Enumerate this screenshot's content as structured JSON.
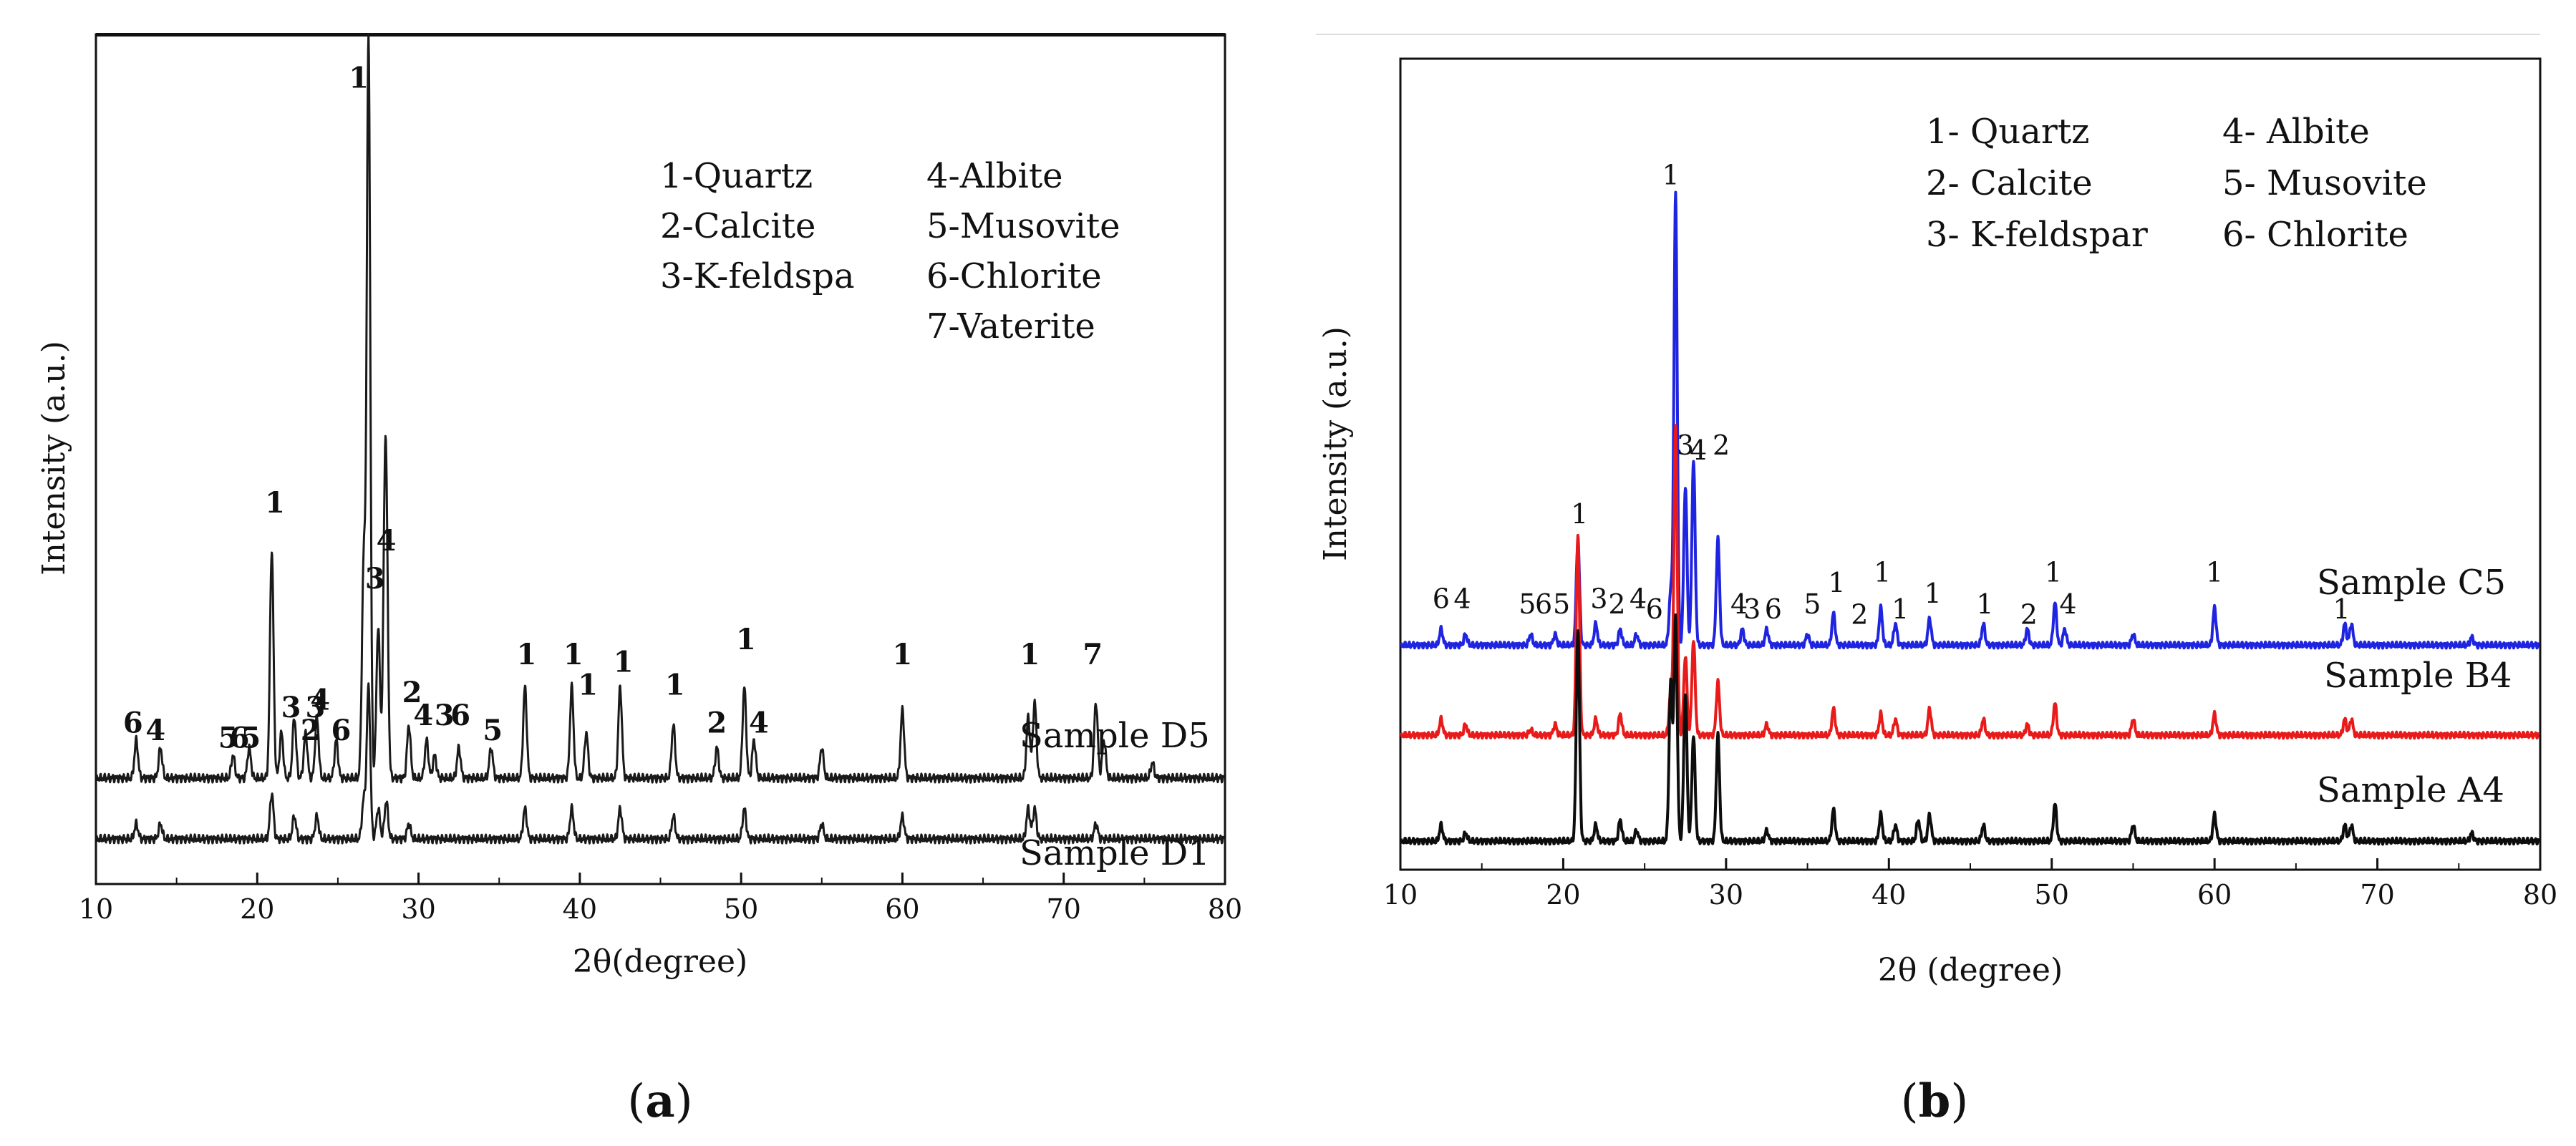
{
  "chart_data": [
    {
      "panel": "a",
      "type": "line",
      "caption": "a",
      "xlabel": "2θ(degree)",
      "ylabel": "Intensity (a.u.)",
      "xlim": [
        10,
        80
      ],
      "xticks": [
        10,
        20,
        30,
        40,
        50,
        60,
        70,
        80
      ],
      "legend": [
        "1-Quartz",
        "2-Calcite",
        "3-K-feldspa",
        "4-Albite",
        "5-Musovite",
        "6-Chlorite",
        "7-Vaterite"
      ],
      "series": [
        {
          "name": "Sample D5",
          "color": "#1a1a1a",
          "baseline": 0.05,
          "peaks": [
            [
              12.5,
              0.05
            ],
            [
              14.0,
              0.04
            ],
            [
              18.5,
              0.03
            ],
            [
              19.5,
              0.04
            ],
            [
              20.9,
              0.3
            ],
            [
              21.5,
              0.06
            ],
            [
              22.3,
              0.08
            ],
            [
              23.0,
              0.06
            ],
            [
              23.7,
              0.08
            ],
            [
              24.9,
              0.05
            ],
            [
              26.6,
              0.28
            ],
            [
              26.9,
              0.97
            ],
            [
              27.5,
              0.2
            ],
            [
              27.9,
              0.22
            ],
            [
              28.0,
              0.28
            ],
            [
              29.4,
              0.07
            ],
            [
              30.5,
              0.05
            ],
            [
              31.0,
              0.03
            ],
            [
              32.5,
              0.04
            ],
            [
              34.5,
              0.04
            ],
            [
              36.6,
              0.12
            ],
            [
              39.5,
              0.12
            ],
            [
              40.4,
              0.06
            ],
            [
              42.5,
              0.12
            ],
            [
              45.8,
              0.07
            ],
            [
              48.5,
              0.04
            ],
            [
              50.2,
              0.12
            ],
            [
              50.8,
              0.05
            ],
            [
              55.0,
              0.04
            ],
            [
              60.0,
              0.09
            ],
            [
              67.8,
              0.08
            ],
            [
              68.2,
              0.1
            ],
            [
              72.0,
              0.1
            ],
            [
              72.5,
              0.05
            ],
            [
              75.5,
              0.02
            ]
          ]
        },
        {
          "name": "Sample D1",
          "color": "#1a1a1a",
          "baseline": 0.0,
          "peaks": [
            [
              12.5,
              0.02
            ],
            [
              14.0,
              0.02
            ],
            [
              20.9,
              0.06
            ],
            [
              22.3,
              0.03
            ],
            [
              23.7,
              0.03
            ],
            [
              26.6,
              0.05
            ],
            [
              26.9,
              0.2
            ],
            [
              27.5,
              0.04
            ],
            [
              28.0,
              0.05
            ],
            [
              29.4,
              0.02
            ],
            [
              36.6,
              0.04
            ],
            [
              39.5,
              0.04
            ],
            [
              42.5,
              0.04
            ],
            [
              45.8,
              0.03
            ],
            [
              50.2,
              0.04
            ],
            [
              55.0,
              0.02
            ],
            [
              60.0,
              0.03
            ],
            [
              67.8,
              0.04
            ],
            [
              68.2,
              0.04
            ],
            [
              72.0,
              0.02
            ]
          ]
        }
      ],
      "series_labels": [
        "Sample D5",
        "Sample D1"
      ],
      "peak_labels": [
        {
          "text": "6",
          "x": 12.3,
          "y": 0.11
        },
        {
          "text": "4",
          "x": 13.7,
          "y": 0.1
        },
        {
          "text": "5",
          "x": 18.2,
          "y": 0.09
        },
        {
          "text": "6",
          "x": 18.9,
          "y": 0.09
        },
        {
          "text": "5",
          "x": 19.6,
          "y": 0.09
        },
        {
          "text": "1",
          "x": 21.1,
          "y": 0.4
        },
        {
          "text": "3",
          "x": 22.1,
          "y": 0.13
        },
        {
          "text": "2",
          "x": 23.3,
          "y": 0.1
        },
        {
          "text": "3",
          "x": 23.6,
          "y": 0.13
        },
        {
          "text": "4",
          "x": 23.9,
          "y": 0.14
        },
        {
          "text": "6",
          "x": 25.2,
          "y": 0.1
        },
        {
          "text": "1",
          "x": 26.3,
          "y": 0.96
        },
        {
          "text": "3",
          "x": 27.3,
          "y": 0.3
        },
        {
          "text": "4",
          "x": 28.0,
          "y": 0.35
        },
        {
          "text": "2",
          "x": 29.6,
          "y": 0.15
        },
        {
          "text": "4",
          "x": 30.3,
          "y": 0.12
        },
        {
          "text": "3",
          "x": 31.6,
          "y": 0.12
        },
        {
          "text": "6",
          "x": 32.6,
          "y": 0.12
        },
        {
          "text": "5",
          "x": 34.6,
          "y": 0.1
        },
        {
          "text": "1",
          "x": 36.7,
          "y": 0.2
        },
        {
          "text": "1",
          "x": 39.6,
          "y": 0.2
        },
        {
          "text": "1",
          "x": 40.5,
          "y": 0.16
        },
        {
          "text": "1",
          "x": 42.7,
          "y": 0.19
        },
        {
          "text": "1",
          "x": 45.9,
          "y": 0.16
        },
        {
          "text": "2",
          "x": 48.5,
          "y": 0.11
        },
        {
          "text": "1",
          "x": 50.3,
          "y": 0.22
        },
        {
          "text": "4",
          "x": 51.1,
          "y": 0.11
        },
        {
          "text": "1",
          "x": 60.0,
          "y": 0.2
        },
        {
          "text": "1",
          "x": 67.9,
          "y": 0.2
        },
        {
          "text": "7",
          "x": 71.8,
          "y": 0.2
        }
      ]
    },
    {
      "panel": "b",
      "type": "line",
      "caption": "b",
      "xlabel": "2θ (degree)",
      "ylabel": "Intensity (a.u.)",
      "xlim": [
        10,
        80
      ],
      "xticks": [
        10,
        20,
        30,
        40,
        50,
        60,
        70,
        80
      ],
      "legend": [
        "1- Quartz",
        "2- Calcite",
        "3- K-feldspar",
        "4- Albite",
        "5- Musovite",
        "6- Chlorite"
      ],
      "series": [
        {
          "name": "Sample C5",
          "color": "#1f24e0",
          "baseline": 0.37,
          "peaks": [
            [
              12.5,
              0.03
            ],
            [
              14.0,
              0.02
            ],
            [
              18.0,
              0.02
            ],
            [
              19.5,
              0.02
            ],
            [
              20.9,
              0.2
            ],
            [
              22.0,
              0.04
            ],
            [
              23.5,
              0.03
            ],
            [
              24.5,
              0.02
            ],
            [
              26.6,
              0.1
            ],
            [
              26.9,
              0.85
            ],
            [
              27.5,
              0.3
            ],
            [
              28.0,
              0.35
            ],
            [
              29.5,
              0.2
            ],
            [
              31.0,
              0.03
            ],
            [
              32.5,
              0.03
            ],
            [
              35.0,
              0.02
            ],
            [
              36.6,
              0.06
            ],
            [
              39.5,
              0.07
            ],
            [
              40.4,
              0.04
            ],
            [
              42.5,
              0.05
            ],
            [
              45.8,
              0.04
            ],
            [
              48.5,
              0.03
            ],
            [
              50.2,
              0.08
            ],
            [
              50.8,
              0.03
            ],
            [
              55.0,
              0.02
            ],
            [
              60.0,
              0.07
            ],
            [
              68.0,
              0.04
            ],
            [
              68.4,
              0.04
            ],
            [
              75.8,
              0.015
            ]
          ]
        },
        {
          "name": "Sample B4",
          "color": "#e81a1a",
          "baseline": 0.2,
          "peaks": [
            [
              12.5,
              0.03
            ],
            [
              14.0,
              0.02
            ],
            [
              18.0,
              0.01
            ],
            [
              19.5,
              0.02
            ],
            [
              20.9,
              0.38
            ],
            [
              22.0,
              0.03
            ],
            [
              23.5,
              0.04
            ],
            [
              26.6,
              0.08
            ],
            [
              26.9,
              0.58
            ],
            [
              27.5,
              0.15
            ],
            [
              28.0,
              0.18
            ],
            [
              29.5,
              0.1
            ],
            [
              32.5,
              0.02
            ],
            [
              36.6,
              0.05
            ],
            [
              39.5,
              0.04
            ],
            [
              40.4,
              0.03
            ],
            [
              42.5,
              0.05
            ],
            [
              45.8,
              0.03
            ],
            [
              48.5,
              0.02
            ],
            [
              50.2,
              0.06
            ],
            [
              55.0,
              0.03
            ],
            [
              60.0,
              0.04
            ],
            [
              68.0,
              0.03
            ],
            [
              68.4,
              0.03
            ]
          ]
        },
        {
          "name": "Sample A4",
          "color": "#0d0d0d",
          "baseline": 0.0,
          "peaks": [
            [
              12.5,
              0.03
            ],
            [
              14.0,
              0.015
            ],
            [
              20.9,
              0.4
            ],
            [
              22.0,
              0.03
            ],
            [
              23.5,
              0.04
            ],
            [
              24.5,
              0.02
            ],
            [
              26.6,
              0.3
            ],
            [
              26.9,
              0.42
            ],
            [
              27.5,
              0.28
            ],
            [
              28.0,
              0.2
            ],
            [
              29.5,
              0.2
            ],
            [
              32.5,
              0.02
            ],
            [
              36.6,
              0.06
            ],
            [
              39.5,
              0.05
            ],
            [
              40.4,
              0.03
            ],
            [
              41.8,
              0.04
            ],
            [
              42.5,
              0.05
            ],
            [
              45.8,
              0.03
            ],
            [
              50.2,
              0.07
            ],
            [
              55.0,
              0.03
            ],
            [
              60.0,
              0.05
            ],
            [
              68.0,
              0.03
            ],
            [
              68.4,
              0.03
            ],
            [
              75.8,
              0.015
            ]
          ]
        }
      ],
      "series_labels": [
        "Sample C5",
        "Sample B4",
        "Sample A4"
      ],
      "peak_labels": [
        {
          "text": "6",
          "x": 12.5,
          "y": 0.44
        },
        {
          "text": "4",
          "x": 13.8,
          "y": 0.44
        },
        {
          "text": "5",
          "x": 17.8,
          "y": 0.43
        },
        {
          "text": "6",
          "x": 18.8,
          "y": 0.43
        },
        {
          "text": "5",
          "x": 19.9,
          "y": 0.43
        },
        {
          "text": "1",
          "x": 21.0,
          "y": 0.6
        },
        {
          "text": "3",
          "x": 22.2,
          "y": 0.44
        },
        {
          "text": "2",
          "x": 23.3,
          "y": 0.43
        },
        {
          "text": "4",
          "x": 24.6,
          "y": 0.44
        },
        {
          "text": "6",
          "x": 25.6,
          "y": 0.42
        },
        {
          "text": "1",
          "x": 26.6,
          "y": 1.24
        },
        {
          "text": "3",
          "x": 27.5,
          "y": 0.73
        },
        {
          "text": "4",
          "x": 28.3,
          "y": 0.72
        },
        {
          "text": "2",
          "x": 29.7,
          "y": 0.73
        },
        {
          "text": "4",
          "x": 30.8,
          "y": 0.43
        },
        {
          "text": "3",
          "x": 31.6,
          "y": 0.42
        },
        {
          "text": "6",
          "x": 32.9,
          "y": 0.42
        },
        {
          "text": "5",
          "x": 35.3,
          "y": 0.43
        },
        {
          "text": "1",
          "x": 36.8,
          "y": 0.47
        },
        {
          "text": "2",
          "x": 38.2,
          "y": 0.41
        },
        {
          "text": "1",
          "x": 39.6,
          "y": 0.49
        },
        {
          "text": "1",
          "x": 40.7,
          "y": 0.42
        },
        {
          "text": "1",
          "x": 42.7,
          "y": 0.45
        },
        {
          "text": "1",
          "x": 45.9,
          "y": 0.43
        },
        {
          "text": "2",
          "x": 48.6,
          "y": 0.41
        },
        {
          "text": "1",
          "x": 50.1,
          "y": 0.49
        },
        {
          "text": "4",
          "x": 51.0,
          "y": 0.43
        },
        {
          "text": "1",
          "x": 60.0,
          "y": 0.49
        },
        {
          "text": "1",
          "x": 67.8,
          "y": 0.42
        }
      ]
    }
  ]
}
